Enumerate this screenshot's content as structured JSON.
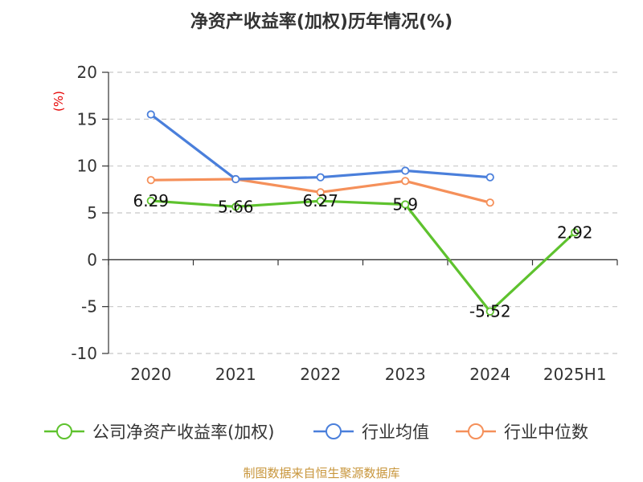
{
  "chart_data": {
    "type": "line",
    "title": "净资产收益率(加权)历年情况(%)",
    "ylabel": "(%)",
    "categories": [
      "2020",
      "2021",
      "2022",
      "2023",
      "2024",
      "2025H1"
    ],
    "ylim": [
      -10,
      20
    ],
    "yticks": [
      -10,
      -5,
      0,
      5,
      10,
      15,
      20
    ],
    "grid": true,
    "legend_position": "bottom",
    "series": [
      {
        "name": "公司净资产收益率(加权)",
        "color": "#5ec22e",
        "values": [
          6.29,
          5.66,
          6.27,
          5.9,
          -5.52,
          2.92
        ],
        "labels": [
          "6.29",
          "5.66",
          "6.27",
          "5.9",
          "-5.52",
          "2.92"
        ]
      },
      {
        "name": "行业均值",
        "color": "#4a7fdb",
        "values": [
          15.5,
          8.6,
          8.8,
          9.5,
          8.8,
          null
        ]
      },
      {
        "name": "行业中位数",
        "color": "#f5905a",
        "values": [
          8.5,
          8.6,
          7.2,
          8.4,
          6.1,
          null
        ]
      }
    ]
  },
  "footer": {
    "source": "制图数据来自恒生聚源数据库"
  }
}
